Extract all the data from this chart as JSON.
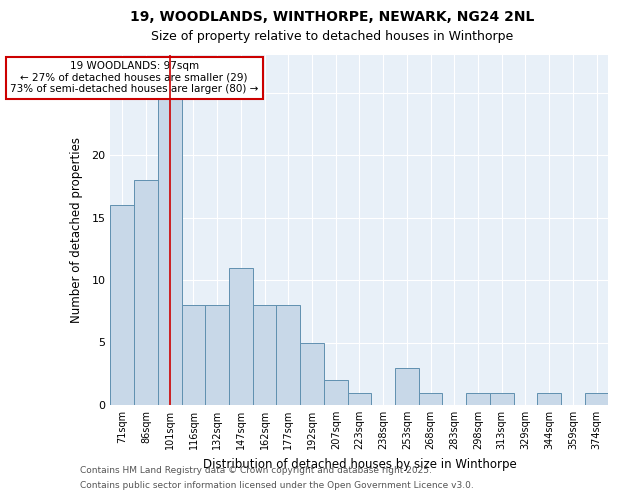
{
  "title_line1": "19, WOODLANDS, WINTHORPE, NEWARK, NG24 2NL",
  "title_line2": "Size of property relative to detached houses in Winthorpe",
  "xlabel": "Distribution of detached houses by size in Winthorpe",
  "ylabel": "Number of detached properties",
  "categories": [
    "71sqm",
    "86sqm",
    "101sqm",
    "116sqm",
    "132sqm",
    "147sqm",
    "162sqm",
    "177sqm",
    "192sqm",
    "207sqm",
    "223sqm",
    "238sqm",
    "253sqm",
    "268sqm",
    "283sqm",
    "298sqm",
    "313sqm",
    "329sqm",
    "344sqm",
    "359sqm",
    "374sqm"
  ],
  "values": [
    16,
    18,
    25,
    8,
    8,
    11,
    8,
    8,
    5,
    2,
    1,
    0,
    3,
    1,
    0,
    1,
    1,
    0,
    1,
    0,
    1
  ],
  "bar_color": "#c8d8e8",
  "bar_edge_color": "#6090b0",
  "vline_x": 2,
  "vline_color": "#cc0000",
  "annotation_text": "19 WOODLANDS: 97sqm\n← 27% of detached houses are smaller (29)\n73% of semi-detached houses are larger (80) →",
  "annotation_box_color": "#ffffff",
  "annotation_box_edge_color": "#cc0000",
  "footnote_line1": "Contains HM Land Registry data © Crown copyright and database right 2025.",
  "footnote_line2": "Contains public sector information licensed under the Open Government Licence v3.0.",
  "background_color": "#e8f0f8",
  "ylim": [
    0,
    28
  ],
  "yticks": [
    0,
    5,
    10,
    15,
    20,
    25
  ]
}
